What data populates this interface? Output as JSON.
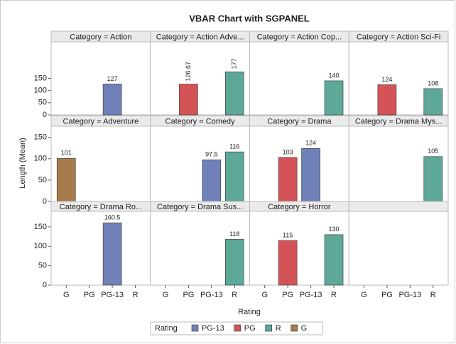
{
  "chart_data": {
    "type": "bar",
    "title": "VBAR Chart with SGPANEL",
    "x_label": "Rating",
    "y_label": "Length (Mean)",
    "categories": [
      "G",
      "PG",
      "PG-13",
      "R"
    ],
    "legend": {
      "title": "Rating",
      "items": [
        {
          "name": "PG-13",
          "color": "#7080b8"
        },
        {
          "name": "PG",
          "color": "#d45357"
        },
        {
          "name": "R",
          "color": "#5ea89a"
        },
        {
          "name": "G",
          "color": "#a67c4d"
        }
      ]
    },
    "rows": [
      {
        "ylim": [
          0,
          300
        ],
        "yticks": [
          0,
          50,
          100,
          150
        ],
        "panels": [
          {
            "header": "Category = Action",
            "values": [
              null,
              null,
              127,
              null
            ]
          },
          {
            "header": "Category = Action Adve...",
            "values": [
              null,
              126.67,
              null,
              177
            ],
            "rotate_labels": true
          },
          {
            "header": "Category = Action Cop...",
            "values": [
              null,
              null,
              null,
              140
            ]
          },
          {
            "header": "Category = Action Sci-Fi",
            "values": [
              null,
              124,
              null,
              108
            ]
          }
        ]
      },
      {
        "ylim": [
          0,
          176
        ],
        "yticks": [
          0,
          50,
          100,
          150
        ],
        "panels": [
          {
            "header": "Category = Adventure",
            "values": [
              101,
              null,
              null,
              null
            ]
          },
          {
            "header": "Category = Comedy",
            "values": [
              null,
              null,
              97.5,
              116
            ]
          },
          {
            "header": "Category = Drama",
            "values": [
              null,
              103,
              124,
              null
            ]
          },
          {
            "header": "Category = Drama Mys...",
            "values": [
              null,
              null,
              null,
              105
            ]
          }
        ]
      },
      {
        "ylim": [
          0,
          190
        ],
        "yticks": [
          0,
          50,
          100,
          150
        ],
        "panels": [
          {
            "header": "Category = Drama Ro...",
            "values": [
              null,
              null,
              160.5,
              null
            ]
          },
          {
            "header": "Category = Drama Sus...",
            "values": [
              null,
              null,
              null,
              118
            ]
          },
          {
            "header": "Category = Horror",
            "values": [
              null,
              115,
              null,
              130
            ]
          }
        ]
      }
    ]
  }
}
